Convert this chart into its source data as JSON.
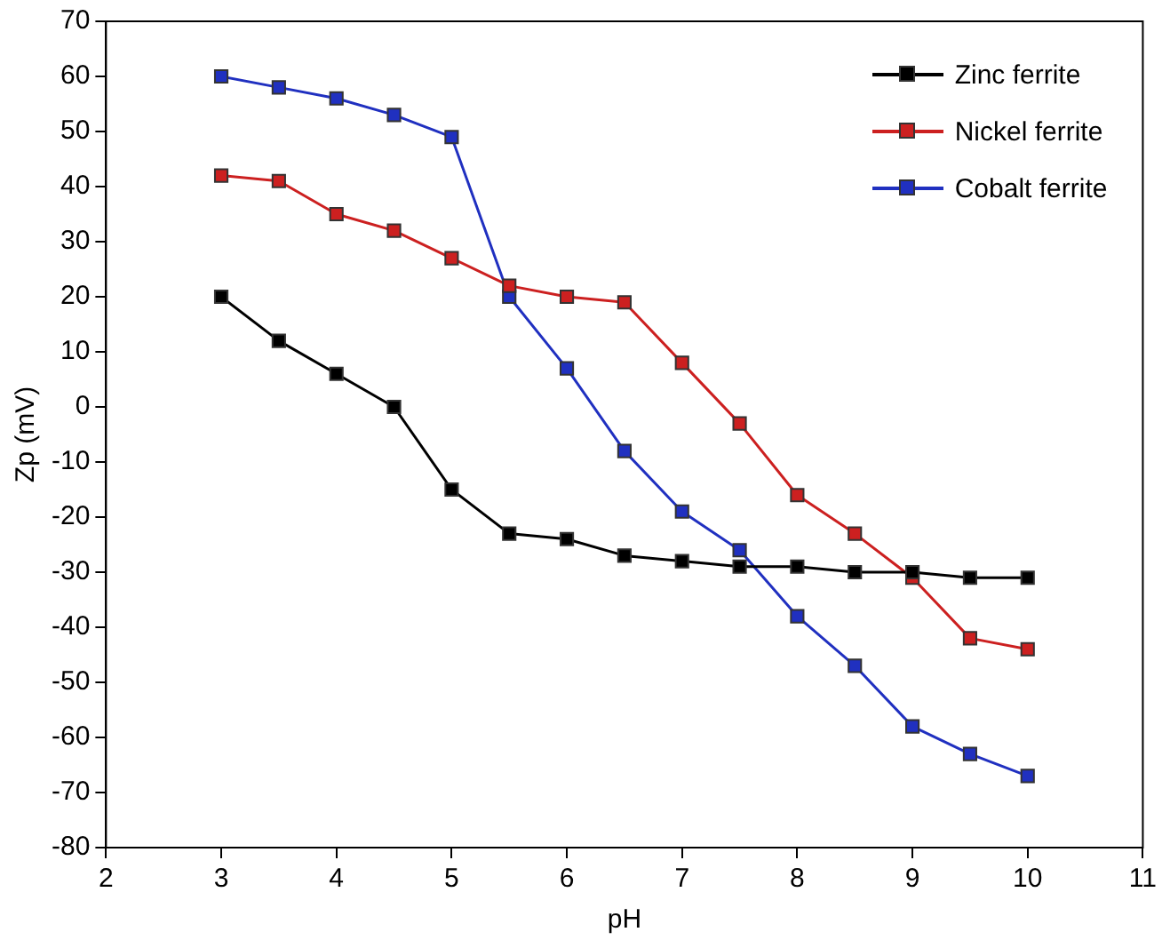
{
  "chart_data": {
    "type": "line",
    "xlabel": "pH",
    "ylabel": "Zp (mV)",
    "x": [
      3,
      3.5,
      4,
      4.5,
      5,
      5.5,
      6,
      6.5,
      7,
      7.5,
      8,
      8.5,
      9,
      9.5,
      10
    ],
    "series": [
      {
        "name": "Zinc ferrite",
        "color": "#000000",
        "values": [
          20,
          12,
          6,
          0,
          -15,
          -23,
          -24,
          -27,
          -28,
          -29,
          -29,
          -30,
          -30,
          -31,
          -31
        ]
      },
      {
        "name": "Nickel ferrite",
        "color": "#cc2020",
        "values": [
          42,
          41,
          35,
          32,
          27,
          22,
          20,
          19,
          8,
          -3,
          -16,
          -23,
          -31,
          -42,
          -44
        ]
      },
      {
        "name": "Cobalt ferrite",
        "color": "#2030c0",
        "values": [
          60,
          58,
          56,
          53,
          49,
          20,
          7,
          -8,
          -19,
          -26,
          -38,
          -47,
          -58,
          -63,
          -67
        ]
      }
    ],
    "xlim": [
      2,
      11
    ],
    "xticks": [
      2,
      3,
      4,
      5,
      6,
      7,
      8,
      9,
      10,
      11
    ],
    "ylim": [
      -80,
      70
    ],
    "yticks": [
      -80,
      -70,
      -60,
      -50,
      -40,
      -30,
      -20,
      -10,
      0,
      10,
      20,
      30,
      40,
      50,
      60,
      70
    ],
    "grid": false,
    "legend": "top right",
    "marker": "square",
    "line_style": "solid"
  }
}
